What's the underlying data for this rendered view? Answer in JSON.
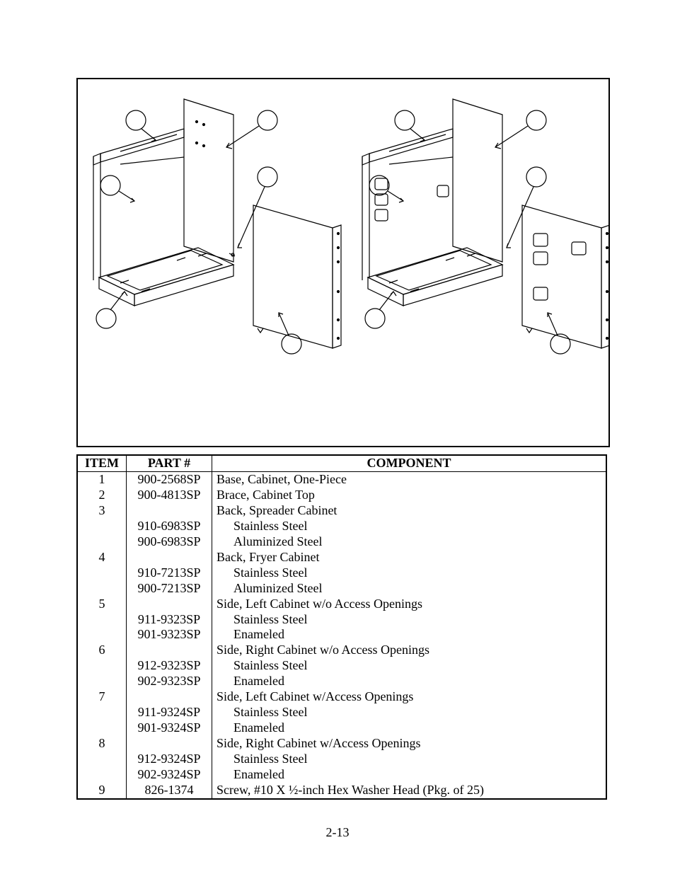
{
  "page_number": "2-13",
  "table": {
    "headers": {
      "item": "ITEM",
      "part": "PART #",
      "component": "COMPONENT"
    },
    "rows": [
      {
        "item": "1",
        "part": "900-2568SP",
        "component": "Base, Cabinet, One-Piece",
        "indent": false
      },
      {
        "item": "2",
        "part": "900-4813SP",
        "component": "Brace, Cabinet Top",
        "indent": false
      },
      {
        "item": "3",
        "part": "",
        "component": "Back, Spreader Cabinet",
        "indent": false
      },
      {
        "item": "",
        "part": "910-6983SP",
        "component": "Stainless Steel",
        "indent": true
      },
      {
        "item": "",
        "part": "900-6983SP",
        "component": "Aluminized Steel",
        "indent": true
      },
      {
        "item": "4",
        "part": "",
        "component": "Back, Fryer Cabinet",
        "indent": false
      },
      {
        "item": "",
        "part": "910-7213SP",
        "component": "Stainless Steel",
        "indent": true
      },
      {
        "item": "",
        "part": "900-7213SP",
        "component": "Aluminized Steel",
        "indent": true
      },
      {
        "item": "5",
        "part": "",
        "component": "Side, Left Cabinet w/o Access Openings",
        "indent": false
      },
      {
        "item": "",
        "part": "911-9323SP",
        "component": "Stainless Steel",
        "indent": true
      },
      {
        "item": "",
        "part": "901-9323SP",
        "component": "Enameled",
        "indent": true
      },
      {
        "item": "6",
        "part": "",
        "component": "Side, Right Cabinet w/o Access Openings",
        "indent": false
      },
      {
        "item": "",
        "part": "912-9323SP",
        "component": "Stainless Steel",
        "indent": true
      },
      {
        "item": "",
        "part": "902-9323SP",
        "component": "Enameled",
        "indent": true
      },
      {
        "item": "7",
        "part": "",
        "component": "Side, Left Cabinet w/Access Openings",
        "indent": false
      },
      {
        "item": "",
        "part": "911-9324SP",
        "component": "Stainless Steel",
        "indent": true
      },
      {
        "item": "",
        "part": "901-9324SP",
        "component": "Enameled",
        "indent": true
      },
      {
        "item": "8",
        "part": "",
        "component": "Side, Right Cabinet w/Access Openings",
        "indent": false
      },
      {
        "item": "",
        "part": "912-9324SP",
        "component": "Stainless Steel",
        "indent": true
      },
      {
        "item": "",
        "part": "902-9324SP",
        "component": "Enameled",
        "indent": true
      },
      {
        "item": "9",
        "part": "826-1374",
        "component": "Screw, #10 X ½-inch Hex Washer Head (Pkg. of 25)",
        "indent": false
      }
    ]
  },
  "diagram": {
    "stroke": "#000000",
    "fill": "#ffffff",
    "callout_radius": 14
  }
}
